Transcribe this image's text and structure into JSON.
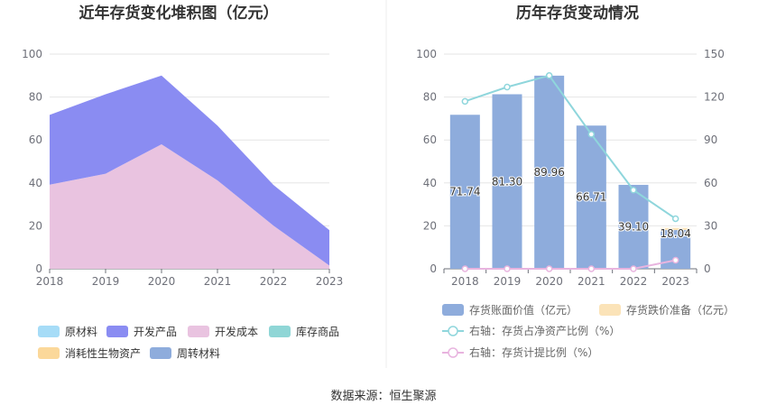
{
  "source_label": "数据来源：恒生聚源",
  "chart_data": [
    {
      "type": "area",
      "title": "近年存货变化堆积图（亿元）",
      "x": [
        "2018",
        "2019",
        "2020",
        "2021",
        "2022",
        "2023"
      ],
      "ylim": [
        0,
        100
      ],
      "yticks": [
        0,
        20,
        40,
        60,
        80,
        100
      ],
      "stacked": true,
      "grid": true,
      "legend_position": "bottom",
      "series": [
        {
          "name": "原材料",
          "color": "#a6dcf7",
          "values": [
            0,
            0,
            0,
            0,
            0,
            0
          ]
        },
        {
          "name": "开发产品",
          "color": "#8a8cf2",
          "values": [
            32.5,
            37.0,
            32.0,
            25.5,
            19.0,
            16.5
          ]
        },
        {
          "name": "开发成本",
          "color": "#e9c3e0",
          "values": [
            39.2,
            44.3,
            58.0,
            41.2,
            20.1,
            1.5
          ]
        },
        {
          "name": "库存商品",
          "color": "#8fd6d6",
          "values": [
            0,
            0,
            0,
            0,
            0,
            0
          ]
        },
        {
          "name": "消耗性生物资产",
          "color": "#fbd89a",
          "values": [
            0,
            0,
            0,
            0,
            0,
            0
          ]
        },
        {
          "name": "周转材料",
          "color": "#8eacdc",
          "values": [
            0,
            0,
            0,
            0,
            0,
            0
          ]
        }
      ]
    },
    {
      "type": "bar",
      "title": "历年存货变动情况",
      "x": [
        "2018",
        "2019",
        "2020",
        "2021",
        "2022",
        "2023"
      ],
      "ylim": [
        0,
        100
      ],
      "yticks": [
        0,
        20,
        40,
        60,
        80,
        100
      ],
      "y2lim": [
        0,
        150
      ],
      "y2ticks": [
        0,
        30,
        60,
        90,
        120,
        150
      ],
      "grid": true,
      "legend_position": "bottom",
      "bars": [
        {
          "name": "存货账面价值（亿元）",
          "color": "#8eacdc",
          "values": [
            71.74,
            81.3,
            89.96,
            66.71,
            39.1,
            18.04
          ],
          "labels": [
            "71.74",
            "81.30",
            "89.96",
            "66.71",
            "39.10",
            "18.04"
          ]
        },
        {
          "name": "存货跌价准备（亿元）",
          "color": "#fbe3b8",
          "values": [
            0,
            0,
            0,
            0,
            0,
            1.0
          ]
        }
      ],
      "lines": [
        {
          "name": "右轴：存货占净资产比例（%）",
          "color": "#8fd6dc",
          "values": [
            117,
            127,
            135,
            94,
            55,
            35
          ]
        },
        {
          "name": "右轴：存货计提比例（%）",
          "color": "#e8b4df",
          "values": [
            0,
            0,
            0,
            0,
            0,
            6
          ]
        }
      ]
    }
  ]
}
